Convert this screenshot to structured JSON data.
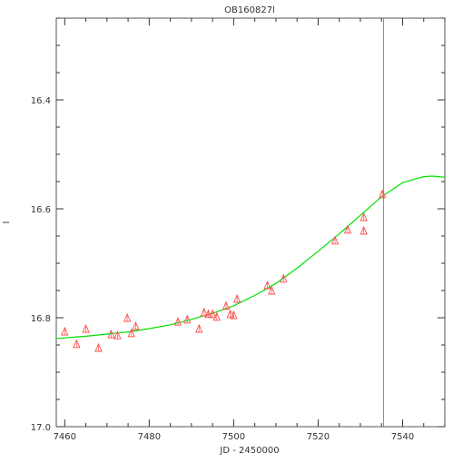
{
  "chart_data": {
    "type": "scatter",
    "title": "OB160827l",
    "xlabel": "JD - 2450000",
    "ylabel": "I",
    "xlim": [
      7458,
      7550
    ],
    "ylim": [
      17.0,
      16.25
    ],
    "y_inverted": true,
    "grid": false,
    "x_ticks": [
      7460,
      7480,
      7500,
      7520,
      7540
    ],
    "y_ticks": [
      16.4,
      16.6,
      16.8,
      17.0
    ],
    "x_tick_labels": [
      "7460",
      "7480",
      "7500",
      "7520",
      "7540"
    ],
    "y_tick_labels": [
      "16.4",
      "16.6",
      "16.8",
      "17.0"
    ],
    "vertical_marker_x": 7535.5,
    "colors": {
      "points": "#ff4d4d",
      "model": "#00e000",
      "marker": "#7a7aff",
      "axes": "#333333"
    },
    "series": [
      {
        "kind": "points",
        "marker": "triangle",
        "x": [
          7460.0,
          7462.8,
          7465.0,
          7468.0,
          7471.0,
          7472.5,
          7474.8,
          7475.8,
          7476.8,
          7486.8,
          7489.0,
          7491.8,
          7493.0,
          7494.0,
          7495.0,
          7496.0,
          7498.2,
          7499.2,
          7500.0,
          7500.8,
          7508.0,
          7509.0,
          7511.8,
          7524.0,
          7527.0,
          7530.8,
          7530.8,
          7535.2
        ],
        "y": [
          16.825,
          16.848,
          16.82,
          16.855,
          16.83,
          16.832,
          16.8,
          16.828,
          16.815,
          16.807,
          16.803,
          16.82,
          16.79,
          16.793,
          16.793,
          16.798,
          16.778,
          16.793,
          16.795,
          16.765,
          16.74,
          16.75,
          16.728,
          16.658,
          16.638,
          16.64,
          16.615,
          16.573
        ]
      },
      {
        "kind": "line",
        "x": [
          7458,
          7465,
          7470,
          7475,
          7480,
          7485,
          7490,
          7495,
          7500,
          7505,
          7510,
          7515,
          7520,
          7525,
          7530,
          7535,
          7540,
          7545,
          7547,
          7550
        ],
        "y": [
          16.838,
          16.834,
          16.83,
          16.826,
          16.82,
          16.813,
          16.803,
          16.792,
          16.778,
          16.759,
          16.737,
          16.709,
          16.678,
          16.646,
          16.612,
          16.578,
          16.552,
          16.541,
          16.54,
          16.542
        ]
      }
    ]
  }
}
